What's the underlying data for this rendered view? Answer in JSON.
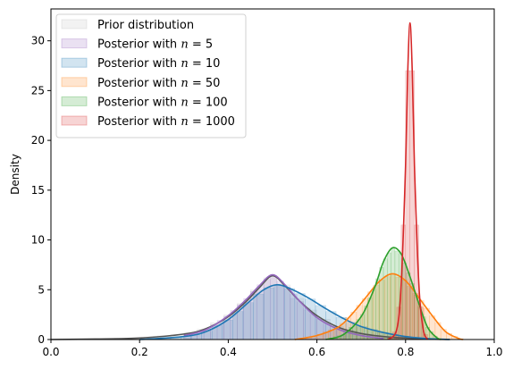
{
  "chart_data": {
    "type": "area",
    "xlabel": "",
    "ylabel": "Density",
    "xlim": [
      0,
      1
    ],
    "ylim": [
      0,
      33.2
    ],
    "x_ticks": [
      0.0,
      0.2,
      0.4,
      0.6,
      0.8,
      1.0
    ],
    "x_tick_labels": [
      "0.0",
      "0.2",
      "0.4",
      "0.6",
      "0.8",
      "1.0"
    ],
    "y_ticks": [
      0,
      5,
      10,
      15,
      20,
      25,
      30
    ],
    "y_tick_labels": [
      "0",
      "5",
      "10",
      "15",
      "20",
      "25",
      "30"
    ],
    "grid": false,
    "legend_placement": "top-left",
    "series": [
      {
        "name": "Prior distribution",
        "hist_color": "#bdbdbd",
        "line_color": "#555555",
        "x": [
          0.0,
          0.1,
          0.2,
          0.3,
          0.35,
          0.4,
          0.44,
          0.47,
          0.5,
          0.53,
          0.56,
          0.6,
          0.65,
          0.7,
          0.75,
          0.8,
          0.85,
          0.9
        ],
        "y": [
          0.0,
          0.05,
          0.15,
          0.55,
          1.1,
          2.3,
          3.8,
          5.2,
          6.4,
          5.3,
          3.9,
          2.4,
          1.2,
          0.6,
          0.3,
          0.15,
          0.05,
          0.0
        ]
      },
      {
        "name": "Posterior with $n = 5$",
        "label_prefix": "Posterior with ",
        "label_var": "n",
        "label_value": "= 5",
        "hist_color": "#9467bd",
        "line_color": "#9467bd",
        "x": [
          0.3,
          0.35,
          0.4,
          0.44,
          0.47,
          0.5,
          0.53,
          0.56,
          0.6,
          0.65,
          0.7,
          0.75
        ],
        "y": [
          0.4,
          1.0,
          2.4,
          4.0,
          5.4,
          6.5,
          5.4,
          3.9,
          2.2,
          1.0,
          0.4,
          0.1
        ]
      },
      {
        "name": "Posterior with $n = 10$",
        "label_prefix": "Posterior with ",
        "label_var": "n",
        "label_value": "= 10",
        "hist_color": "#1f77b4",
        "line_color": "#1f77b4",
        "x": [
          0.2,
          0.3,
          0.35,
          0.4,
          0.45,
          0.48,
          0.51,
          0.54,
          0.58,
          0.62,
          0.66,
          0.7,
          0.75,
          0.8,
          0.85,
          0.9
        ],
        "y": [
          0.0,
          0.3,
          0.8,
          2.0,
          3.9,
          5.0,
          5.5,
          5.1,
          4.2,
          3.1,
          2.1,
          1.3,
          0.7,
          0.3,
          0.1,
          0.0
        ]
      },
      {
        "name": "Posterior with $n = 50$",
        "label_prefix": "Posterior with ",
        "label_var": "n",
        "label_value": "= 50",
        "hist_color": "#ff7f0e",
        "line_color": "#ff7f0e",
        "x": [
          0.55,
          0.6,
          0.65,
          0.68,
          0.71,
          0.74,
          0.77,
          0.8,
          0.83,
          0.86,
          0.89,
          0.92,
          0.93
        ],
        "y": [
          0.0,
          0.4,
          1.3,
          2.6,
          4.2,
          5.8,
          6.6,
          5.9,
          4.2,
          2.4,
          0.8,
          0.1,
          0.0
        ]
      },
      {
        "name": "Posterior with $n = 100$",
        "label_prefix": "Posterior with ",
        "label_var": "n",
        "label_value": "= 100",
        "hist_color": "#2ca02c",
        "line_color": "#2ca02c",
        "x": [
          0.62,
          0.66,
          0.7,
          0.73,
          0.75,
          0.77,
          0.79,
          0.81,
          0.83,
          0.85,
          0.87,
          0.88
        ],
        "y": [
          0.0,
          0.5,
          2.3,
          5.2,
          7.8,
          9.2,
          8.6,
          6.3,
          3.6,
          1.2,
          0.2,
          0.0
        ]
      },
      {
        "name": "Posterior with $n = 1000$",
        "label_prefix": "Posterior with ",
        "label_var": "n",
        "label_value": "= 1000",
        "hist_color": "#d62728",
        "line_color": "#d62728",
        "x": [
          0.76,
          0.78,
          0.79,
          0.8,
          0.805,
          0.81,
          0.815,
          0.82,
          0.83,
          0.84,
          0.85
        ],
        "y": [
          0.0,
          1.0,
          5.5,
          17.5,
          27.0,
          31.8,
          27.0,
          17.5,
          5.5,
          1.0,
          0.0
        ]
      }
    ]
  }
}
